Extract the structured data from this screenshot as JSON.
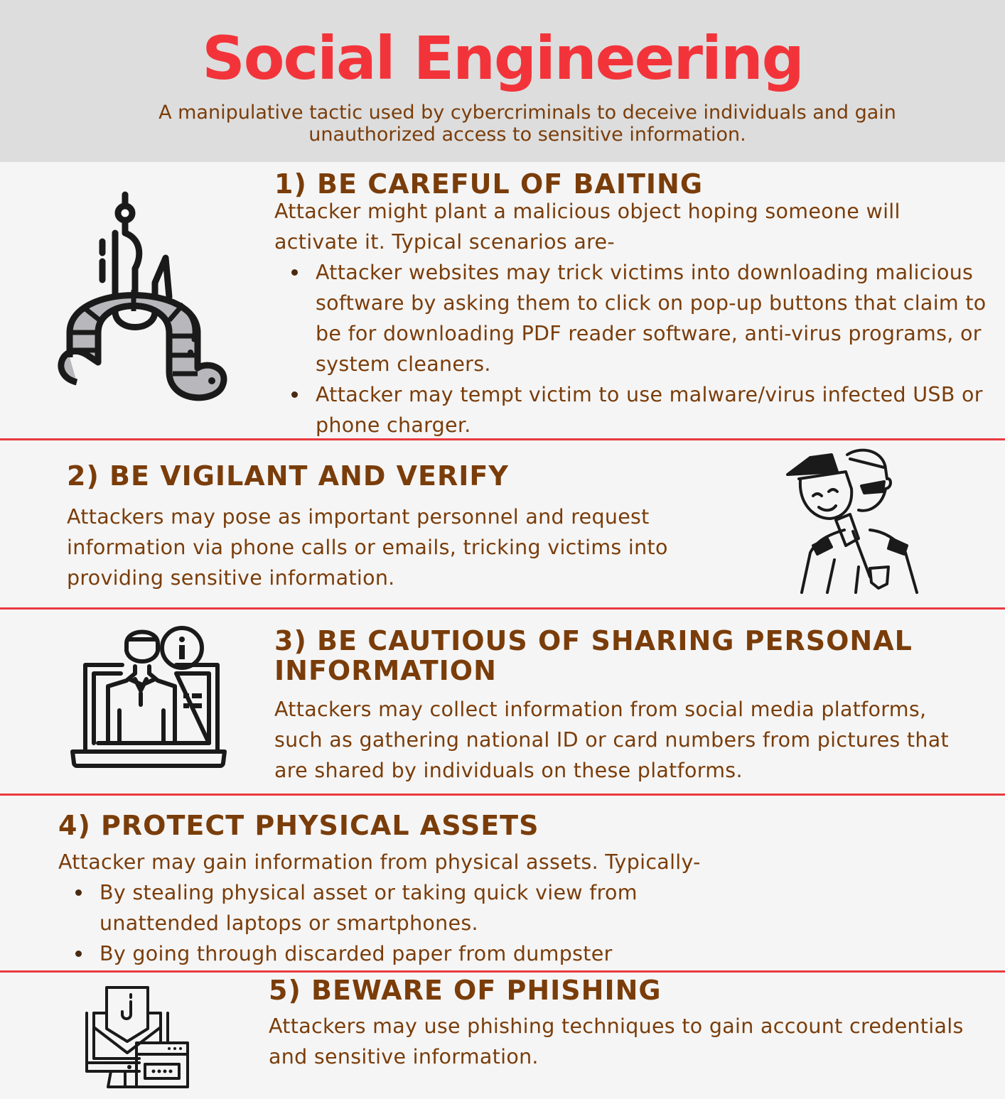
{
  "header": {
    "title": "Social Engineering",
    "subtitle": "A manipulative tactic used by cybercriminals to deceive individuals and gain unauthorized access to sensitive information."
  },
  "colors": {
    "title_red": "#f2343a",
    "text_brown": "#7a3d0a",
    "divider_red": "#ea3a3f",
    "header_bg": "#dddddd",
    "body_bg": "#f5f5f5"
  },
  "sections": [
    {
      "heading": "1) BE CAREFUL OF BAITING",
      "intro": "Attacker might plant a malicious object hoping someone will activate it. Typical scenarios are-",
      "bullets": [
        "Attacker websites may trick victims into downloading malicious software by asking them to click on pop-up buttons that claim to be for downloading PDF reader software, anti-virus programs, or system cleaners.",
        "Attacker may tempt victim to use malware/virus infected USB or phone charger."
      ],
      "icon": "worm-on-hook-icon"
    },
    {
      "heading": "2) BE VIGILANT AND VERIFY",
      "intro": "Attackers may pose as important personnel and request information via phone calls or emails, tricking victims into providing sensitive information.",
      "icon": "masked-impostor-icon"
    },
    {
      "heading": "3) BE CAUTIOUS OF SHARING PERSONAL INFORMATION",
      "intro": "Attackers may collect information from social media platforms, such as gathering national ID or card numbers from pictures that are shared by individuals on these platforms.",
      "icon": "laptop-profile-info-icon"
    },
    {
      "heading": "4) PROTECT PHYSICAL ASSETS",
      "intro": "Attacker may gain information from physical assets. Typically-",
      "bullets": [
        "By stealing physical asset or taking quick view from unattended laptops or smartphones.",
        "By going through discarded paper from dumpster"
      ]
    },
    {
      "heading": "5) BEWARE OF PHISHING",
      "intro": "Attackers may use phishing techniques to gain account credentials and sensitive information.",
      "icon": "phishing-email-icon"
    }
  ]
}
